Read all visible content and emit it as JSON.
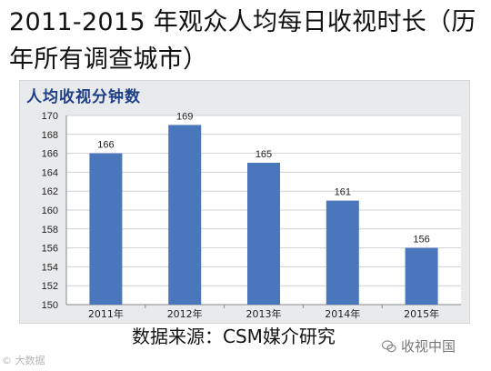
{
  "title": "2011-2015 年观众人均每日收视时长（历年所有调查城市）",
  "source": "数据来源：CSM媒介研究",
  "watermark_left": "© 大数据",
  "watermark_right": "收视中国",
  "chart_data": {
    "type": "bar",
    "title": "人均收视分钟数",
    "categories": [
      "2011年",
      "2012年",
      "2013年",
      "2014年",
      "2015年"
    ],
    "values": [
      166,
      169,
      165,
      161,
      156
    ],
    "ylim": [
      150,
      170
    ],
    "yticks": [
      150,
      152,
      154,
      156,
      158,
      160,
      162,
      164,
      166,
      168,
      170
    ],
    "grid": true,
    "bar_color": "#4a77bb"
  }
}
